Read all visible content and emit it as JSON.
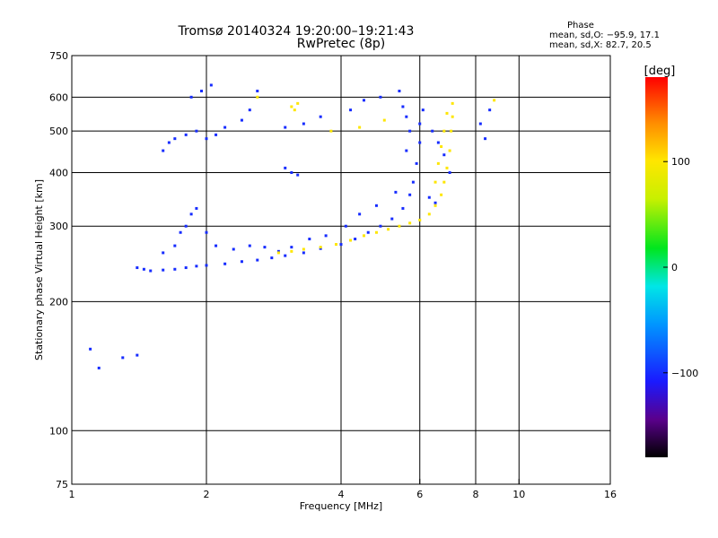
{
  "header": {
    "title_line1": "Tromsø 20140324 19:20:00–19:21:43",
    "title_line2": "RwPretec (8p)",
    "phase_title": "Phase",
    "phase_stat_o": "mean, sd,O: −95.9, 17.1",
    "phase_stat_x": "mean, sd,X:  82.7, 20.5"
  },
  "colors": {
    "grid": "#000000",
    "frame": "#000000"
  },
  "colorbar": {
    "label": "[deg]",
    "tick_labels": [
      "100",
      "0",
      "−100"
    ],
    "tick_values": [
      100,
      0,
      -100
    ],
    "range": [
      -180,
      180
    ]
  },
  "chart_data": {
    "type": "scatter",
    "xlabel": "Frequency [MHz]",
    "ylabel": "Stationary phase Virtual Height [km]",
    "xscale": "log",
    "yscale": "log",
    "xlim": [
      1,
      16
    ],
    "ylim": [
      75,
      750
    ],
    "x_ticks": [
      1,
      2,
      4,
      6,
      8,
      10,
      16
    ],
    "x_tick_labels": [
      "1",
      "2",
      "4",
      "6",
      "8",
      "10",
      "16"
    ],
    "y_ticks": [
      75,
      100,
      200,
      300,
      400,
      500,
      600,
      750
    ],
    "y_tick_labels": [
      "75",
      "100",
      "200",
      "300",
      "400",
      "500",
      "600",
      "750"
    ],
    "series": [
      {
        "mode": "O",
        "phase": -100,
        "points": [
          [
            1.4,
            240
          ],
          [
            1.45,
            238
          ],
          [
            1.5,
            236
          ],
          [
            1.6,
            237
          ],
          [
            1.7,
            238
          ],
          [
            1.8,
            240
          ],
          [
            1.9,
            242
          ],
          [
            2.0,
            243
          ],
          [
            2.2,
            245
          ],
          [
            2.4,
            248
          ],
          [
            2.6,
            250
          ],
          [
            2.8,
            253
          ],
          [
            3.0,
            256
          ],
          [
            3.3,
            260
          ],
          [
            3.6,
            266
          ],
          [
            4.0,
            272
          ],
          [
            4.3,
            280
          ],
          [
            4.6,
            290
          ],
          [
            4.9,
            300
          ],
          [
            5.2,
            312
          ],
          [
            5.5,
            330
          ],
          [
            5.7,
            355
          ],
          [
            5.8,
            380
          ],
          [
            5.9,
            420
          ],
          [
            6.0,
            470
          ],
          [
            6.0,
            520
          ],
          [
            6.1,
            560
          ],
          [
            1.6,
            260
          ],
          [
            1.7,
            270
          ],
          [
            1.75,
            290
          ],
          [
            1.8,
            300
          ],
          [
            1.85,
            320
          ],
          [
            1.9,
            330
          ],
          [
            2.0,
            290
          ],
          [
            2.1,
            270
          ],
          [
            2.3,
            265
          ],
          [
            2.5,
            270
          ],
          [
            2.7,
            268
          ],
          [
            2.9,
            262
          ],
          [
            3.1,
            268
          ],
          [
            3.4,
            280
          ],
          [
            3.7,
            285
          ],
          [
            4.1,
            300
          ],
          [
            4.4,
            320
          ],
          [
            4.8,
            335
          ],
          [
            5.3,
            360
          ],
          [
            1.6,
            450
          ],
          [
            1.65,
            470
          ],
          [
            1.7,
            480
          ],
          [
            1.8,
            490
          ],
          [
            1.9,
            500
          ],
          [
            2.0,
            480
          ],
          [
            2.1,
            490
          ],
          [
            2.2,
            510
          ],
          [
            2.4,
            530
          ],
          [
            2.5,
            560
          ],
          [
            2.6,
            620
          ],
          [
            1.85,
            600
          ],
          [
            1.95,
            620
          ],
          [
            2.05,
            640
          ],
          [
            3.0,
            510
          ],
          [
            3.3,
            520
          ],
          [
            3.6,
            540
          ],
          [
            4.2,
            560
          ],
          [
            4.5,
            590
          ],
          [
            4.9,
            600
          ],
          [
            5.4,
            620
          ],
          [
            5.5,
            570
          ],
          [
            5.6,
            540
          ],
          [
            3.0,
            410
          ],
          [
            3.1,
            400
          ],
          [
            3.2,
            395
          ],
          [
            6.4,
            500
          ],
          [
            6.6,
            470
          ],
          [
            6.8,
            440
          ],
          [
            7.0,
            400
          ],
          [
            6.3,
            350
          ],
          [
            6.5,
            340
          ],
          [
            8.2,
            520
          ],
          [
            8.4,
            480
          ],
          [
            8.6,
            560
          ],
          [
            1.1,
            155
          ],
          [
            1.15,
            140
          ],
          [
            1.3,
            148
          ],
          [
            1.4,
            150
          ],
          [
            5.6,
            450
          ],
          [
            5.7,
            500
          ]
        ]
      },
      {
        "mode": "X",
        "phase": 100,
        "points": [
          [
            2.9,
            260
          ],
          [
            3.1,
            262
          ],
          [
            3.3,
            265
          ],
          [
            3.6,
            268
          ],
          [
            3.9,
            272
          ],
          [
            4.2,
            278
          ],
          [
            4.5,
            285
          ],
          [
            4.8,
            290
          ],
          [
            5.1,
            295
          ],
          [
            5.4,
            300
          ],
          [
            5.7,
            305
          ],
          [
            6.0,
            310
          ],
          [
            6.3,
            320
          ],
          [
            6.5,
            335
          ],
          [
            6.7,
            355
          ],
          [
            6.8,
            380
          ],
          [
            6.9,
            410
          ],
          [
            7.0,
            450
          ],
          [
            7.05,
            500
          ],
          [
            7.1,
            540
          ],
          [
            7.1,
            580
          ],
          [
            6.6,
            420
          ],
          [
            6.7,
            460
          ],
          [
            6.8,
            500
          ],
          [
            6.9,
            550
          ],
          [
            6.5,
            380
          ],
          [
            3.2,
            580
          ],
          [
            3.15,
            560
          ],
          [
            3.1,
            570
          ],
          [
            2.6,
            600
          ],
          [
            3.8,
            500
          ],
          [
            4.4,
            510
          ],
          [
            5.0,
            530
          ],
          [
            8.8,
            590
          ]
        ]
      }
    ]
  }
}
